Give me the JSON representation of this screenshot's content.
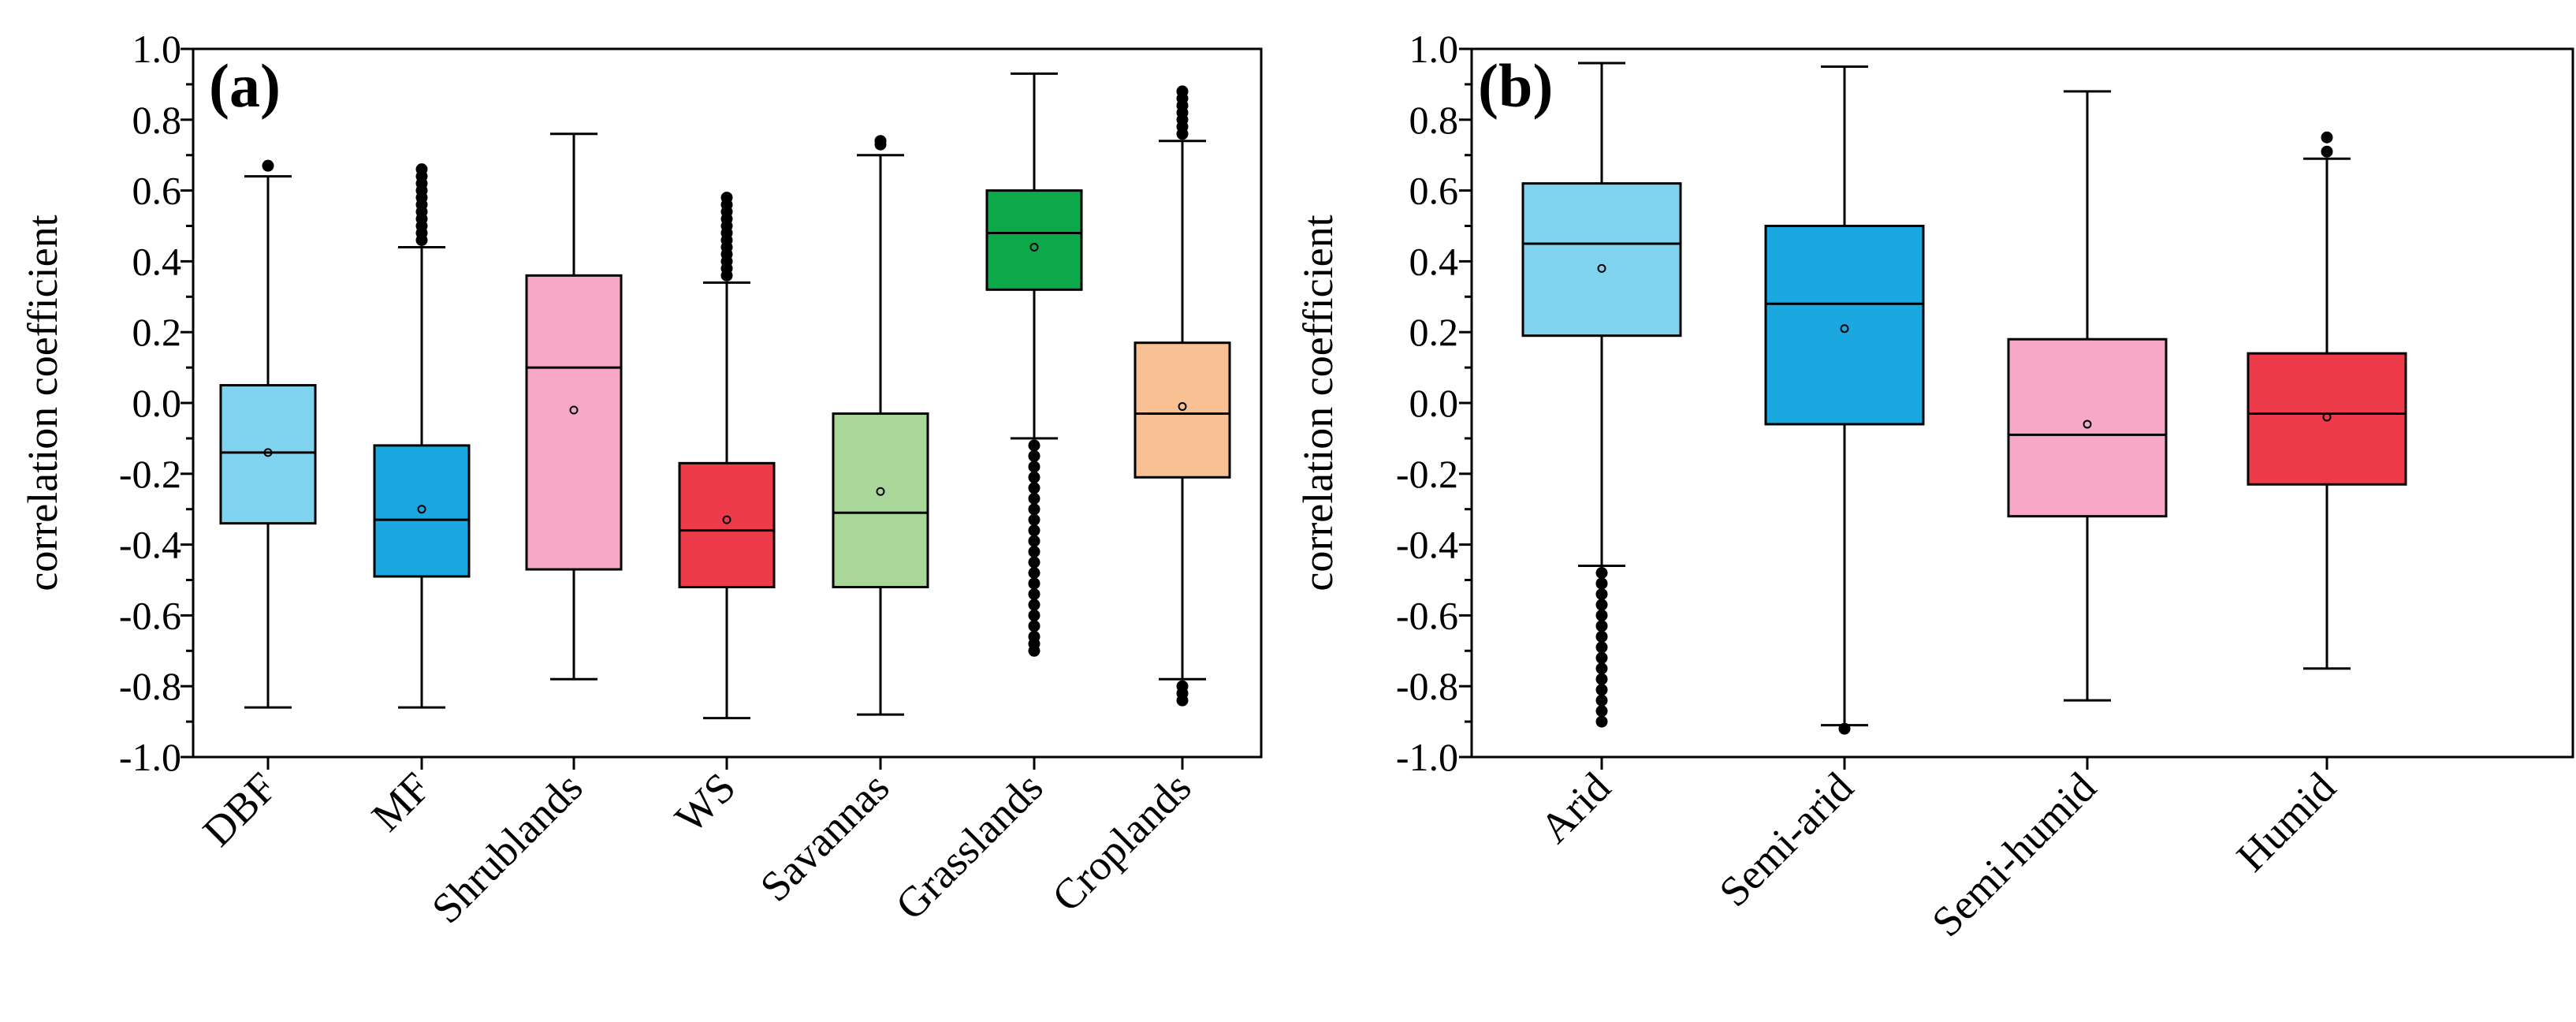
{
  "chart_data": [
    {
      "type": "box",
      "panel_label": "(a)",
      "ylabel": "correlation coefficient",
      "ylim": [
        -1.0,
        1.0
      ],
      "yticks": [
        "-1.0",
        "-0.8",
        "-0.6",
        "-0.4",
        "-0.2",
        "0.0",
        "0.2",
        "0.4",
        "0.6",
        "0.8",
        "1.0"
      ],
      "grid": false,
      "categories": [
        "DBF",
        "MF",
        "Shrublands",
        "WS",
        "Savannas",
        "Grasslands",
        "Croplands"
      ],
      "boxes": [
        {
          "name": "DBF",
          "color": "#7fd3ef",
          "q1": -0.34,
          "median": -0.14,
          "q3": 0.05,
          "mean": -0.14,
          "whisker_low": -0.86,
          "whisker_high": 0.64,
          "outliers_low": [],
          "outliers_high": [
            0.67
          ]
        },
        {
          "name": "MF",
          "color": "#1ba7e0",
          "q1": -0.49,
          "median": -0.33,
          "q3": -0.12,
          "mean": -0.3,
          "whisker_low": -0.86,
          "whisker_high": 0.44,
          "outliers_low": [],
          "outliers_high": [
            0.46,
            0.48,
            0.5,
            0.52,
            0.54,
            0.56,
            0.58,
            0.6,
            0.62,
            0.64,
            0.66
          ]
        },
        {
          "name": "Shrublands",
          "color": "#f7a8c6",
          "q1": -0.47,
          "median": 0.1,
          "q3": 0.36,
          "mean": -0.02,
          "whisker_low": -0.78,
          "whisker_high": 0.76,
          "outliers_low": [],
          "outliers_high": []
        },
        {
          "name": "WS",
          "color": "#ee3b4c",
          "q1": -0.52,
          "median": -0.36,
          "q3": -0.17,
          "mean": -0.33,
          "whisker_low": -0.89,
          "whisker_high": 0.34,
          "outliers_low": [],
          "outliers_high": [
            0.36,
            0.38,
            0.4,
            0.42,
            0.44,
            0.46,
            0.48,
            0.5,
            0.52,
            0.54,
            0.56,
            0.58
          ]
        },
        {
          "name": "Savannas",
          "color": "#a9d79a",
          "q1": -0.52,
          "median": -0.31,
          "q3": -0.03,
          "mean": -0.25,
          "whisker_low": -0.88,
          "whisker_high": 0.7,
          "outliers_low": [],
          "outliers_high": [
            0.73,
            0.74
          ]
        },
        {
          "name": "Grasslands",
          "color": "#0ca84a",
          "q1": 0.32,
          "median": 0.48,
          "q3": 0.6,
          "mean": 0.44,
          "whisker_low": -0.1,
          "whisker_high": 0.93,
          "outliers_low": [
            -0.12,
            -0.15,
            -0.18,
            -0.21,
            -0.24,
            -0.27,
            -0.3,
            -0.33,
            -0.36,
            -0.39,
            -0.42,
            -0.45,
            -0.48,
            -0.51,
            -0.54,
            -0.57,
            -0.6,
            -0.63,
            -0.66,
            -0.68,
            -0.7
          ],
          "outliers_high": []
        },
        {
          "name": "Croplands",
          "color": "#f8c193",
          "q1": -0.21,
          "median": -0.03,
          "q3": 0.17,
          "mean": -0.01,
          "whisker_low": -0.78,
          "whisker_high": 0.74,
          "outliers_low": [
            -0.8,
            -0.82,
            -0.84
          ],
          "outliers_high": [
            0.76,
            0.78,
            0.8,
            0.82,
            0.84,
            0.86,
            0.88
          ]
        }
      ]
    },
    {
      "type": "box",
      "panel_label": "(b)",
      "ylabel": "correlation coefficient",
      "ylim": [
        -1.0,
        1.0
      ],
      "yticks": [
        "-1.0",
        "-0.8",
        "-0.6",
        "-0.4",
        "-0.2",
        "0.0",
        "0.2",
        "0.4",
        "0.6",
        "0.8",
        "1.0"
      ],
      "grid": false,
      "categories": [
        "Arid",
        "Semi-arid",
        "Semi-humid",
        "Humid"
      ],
      "boxes": [
        {
          "name": "Arid",
          "color": "#7fd3ef",
          "q1": 0.19,
          "median": 0.45,
          "q3": 0.62,
          "mean": 0.38,
          "whisker_low": -0.46,
          "whisker_high": 0.96,
          "outliers_low": [
            -0.48,
            -0.51,
            -0.54,
            -0.57,
            -0.6,
            -0.63,
            -0.66,
            -0.69,
            -0.72,
            -0.75,
            -0.78,
            -0.81,
            -0.84,
            -0.87,
            -0.9
          ],
          "outliers_high": []
        },
        {
          "name": "Semi-arid",
          "color": "#1ba7e0",
          "q1": -0.06,
          "median": 0.28,
          "q3": 0.5,
          "mean": 0.21,
          "whisker_low": -0.91,
          "whisker_high": 0.95,
          "outliers_low": [
            -0.92
          ],
          "outliers_high": []
        },
        {
          "name": "Semi-humid",
          "color": "#f7a8c6",
          "q1": -0.32,
          "median": -0.09,
          "q3": 0.18,
          "mean": -0.06,
          "whisker_low": -0.84,
          "whisker_high": 0.88,
          "outliers_low": [],
          "outliers_high": []
        },
        {
          "name": "Humid",
          "color": "#ee3b4c",
          "q1": -0.23,
          "median": -0.03,
          "q3": 0.14,
          "mean": -0.04,
          "whisker_low": -0.75,
          "whisker_high": 0.69,
          "outliers_low": [],
          "outliers_high": [
            0.71,
            0.75
          ]
        }
      ]
    }
  ]
}
